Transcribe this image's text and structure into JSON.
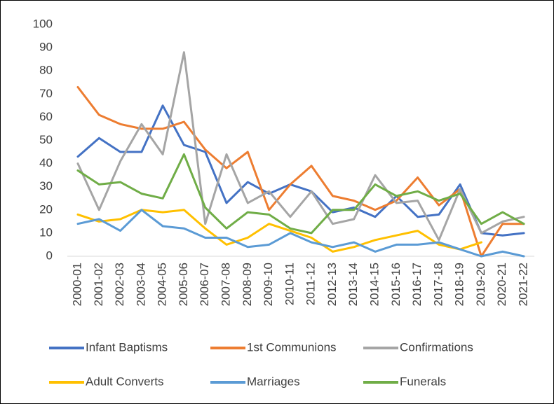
{
  "chart_data": {
    "type": "line",
    "categories": [
      "2000-01",
      "2001-02",
      "2002-03",
      "2003-04",
      "2004-05",
      "2005-06",
      "2006-07",
      "2007-08",
      "2008-09",
      "2009-10",
      "2010-11",
      "2011-12",
      "2012-13",
      "2013-14",
      "2014-15",
      "2015-16",
      "2016-17",
      "2017-18",
      "2018-19",
      "2019-20",
      "2020-21",
      "2021-22"
    ],
    "series": [
      {
        "name": "Infant Baptisms",
        "color": "#4472c4",
        "values": [
          43,
          51,
          45,
          45,
          65,
          48,
          45,
          23,
          32,
          27,
          31,
          28,
          19,
          21,
          17,
          26,
          17,
          18,
          31,
          10,
          9,
          10
        ]
      },
      {
        "name": "1st Communions",
        "color": "#ed7d31",
        "values": [
          73,
          61,
          57,
          55,
          55,
          58,
          46,
          38,
          45,
          20,
          31,
          39,
          26,
          24,
          20,
          24,
          34,
          22,
          29,
          0,
          14,
          14
        ]
      },
      {
        "name": "Confirmations",
        "color": "#a5a5a5",
        "values": [
          40,
          20,
          41,
          57,
          44,
          88,
          14,
          44,
          23,
          28,
          17,
          28,
          14,
          16,
          35,
          23,
          24,
          7,
          29,
          10,
          15,
          17
        ]
      },
      {
        "name": "Adult Converts",
        "color": "#ffc000",
        "values": [
          18,
          15,
          16,
          20,
          19,
          20,
          12,
          5,
          8,
          14,
          11,
          8,
          2,
          4,
          7,
          9,
          11,
          5,
          3,
          6,
          null,
          null
        ]
      },
      {
        "name": "Marriages",
        "color": "#5b9bd5",
        "values": [
          14,
          16,
          11,
          20,
          13,
          12,
          8,
          8,
          4,
          5,
          10,
          6,
          4,
          6,
          2,
          5,
          5,
          6,
          3,
          0,
          2,
          0
        ]
      },
      {
        "name": "Funerals",
        "color": "#70ad47",
        "values": [
          37,
          31,
          32,
          27,
          25,
          44,
          21,
          12,
          19,
          18,
          12,
          10,
          20,
          20,
          31,
          26,
          28,
          24,
          27,
          14,
          19,
          14
        ]
      }
    ],
    "ylim": [
      0,
      100
    ],
    "yticks": [
      0,
      10,
      20,
      30,
      40,
      50,
      60,
      70,
      80,
      90,
      100
    ],
    "grid": false,
    "legend": "bottom"
  }
}
